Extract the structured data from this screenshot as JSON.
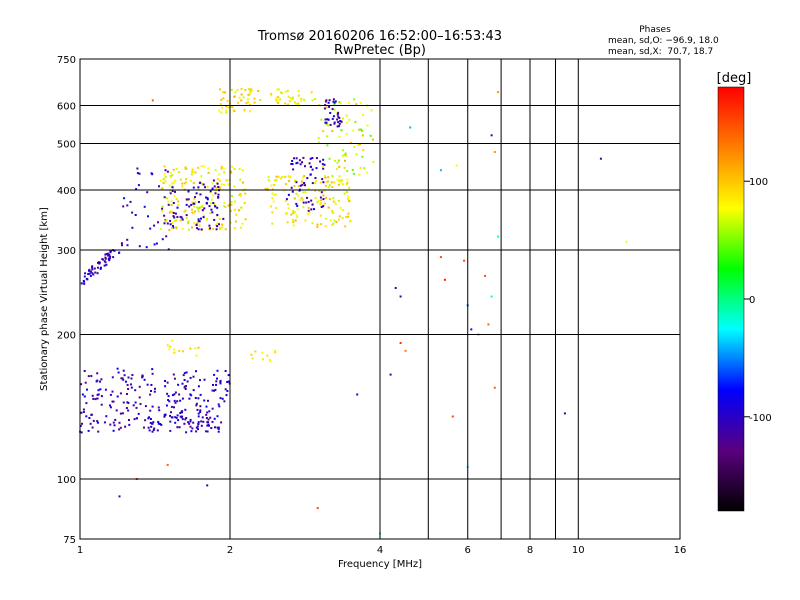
{
  "chart_data": {
    "type": "scatter",
    "title": "Tromsø 20160206 16:52:00–16:53:43",
    "subtitle": "RwPretec (Bp)",
    "xlabel": "Frequency [MHz]",
    "ylabel": "Stationary phase Virtual Height [km]",
    "x_scale": "log",
    "y_scale": "log",
    "xlim": [
      1,
      16
    ],
    "ylim": [
      75,
      750
    ],
    "x_ticks": [
      1,
      2,
      4,
      6,
      8,
      10,
      16
    ],
    "x_tick_labels": [
      "1",
      "2",
      "4",
      "6",
      "8",
      "10",
      "16"
    ],
    "x_grid_extra": [
      5,
      7,
      9
    ],
    "y_ticks": [
      75,
      100,
      200,
      300,
      400,
      500,
      600,
      750
    ],
    "y_tick_labels": [
      "75",
      "100",
      "200",
      "300",
      "400",
      "500",
      "600",
      "750"
    ],
    "grid": true,
    "phases_box": {
      "heading": "Phases",
      "line1": "mean, sd,O: −96.9, 18.0",
      "line2": "mean, sd,X:  70.7, 18.7"
    },
    "colorbar": {
      "label": "[deg]",
      "range": [
        -180,
        180
      ],
      "ticks": [
        100,
        0,
        -100
      ],
      "tick_labels": [
        "100",
        "0",
        "-100"
      ],
      "colormap": [
        "#000000",
        "#5a007f",
        "#0000ff",
        "#00ffff",
        "#00ff00",
        "#ffff00",
        "#ff7f00",
        "#ff0000"
      ]
    },
    "series": [
      {
        "kind": "clusters",
        "clusters": [
          {
            "x": [
              1.0,
              1.22
            ],
            "y": [
              255,
              310
            ],
            "phase": [
              -130,
              -80
            ],
            "n": 60,
            "trend": "rising"
          },
          {
            "x": [
              1.0,
              2.0
            ],
            "y": [
              125,
              170
            ],
            "phase": [
              -130,
              -80
            ],
            "n": 230
          },
          {
            "x": [
              1.35,
              1.85
            ],
            "y": [
              125,
              140
            ],
            "phase": [
              -120,
              -85
            ],
            "n": 60
          },
          {
            "x": [
              1.22,
              1.55
            ],
            "y": [
              300,
              450
            ],
            "phase": [
              -130,
              -80
            ],
            "n": 40
          },
          {
            "x": [
              1.45,
              2.15
            ],
            "y": [
              330,
              450
            ],
            "phase": [
              60,
              110
            ],
            "n": 190
          },
          {
            "x": [
              1.5,
              1.95
            ],
            "y": [
              330,
              420
            ],
            "phase": [
              -130,
              -80
            ],
            "n": 80
          },
          {
            "x": [
              1.9,
              2.3
            ],
            "y": [
              580,
              650
            ],
            "phase": [
              60,
              110
            ],
            "n": 50
          },
          {
            "x": [
              2.35,
              3.5
            ],
            "y": [
              335,
              430
            ],
            "phase": [
              60,
              110
            ],
            "n": 150
          },
          {
            "x": [
              2.6,
              3.1
            ],
            "y": [
              360,
              470
            ],
            "phase": [
              -130,
              -80
            ],
            "n": 60
          },
          {
            "x": [
              3.0,
              3.9
            ],
            "y": [
              430,
              620
            ],
            "phase": [
              40,
              110
            ],
            "n": 70
          },
          {
            "x": [
              3.1,
              3.35
            ],
            "y": [
              540,
              620
            ],
            "phase": [
              -130,
              -90
            ],
            "n": 35
          },
          {
            "x": [
              2.4,
              3.0
            ],
            "y": [
              600,
              650
            ],
            "phase": [
              60,
              100
            ],
            "n": 35
          },
          {
            "x": [
              2.2,
              2.5
            ],
            "y": [
              175,
              185
            ],
            "phase": [
              70,
              100
            ],
            "n": 10
          },
          {
            "x": [
              1.5,
              1.75
            ],
            "y": [
              180,
              195
            ],
            "phase": [
              60,
              100
            ],
            "n": 12
          }
        ]
      },
      {
        "kind": "points",
        "x": [
          4.2,
          4.3,
          4.4,
          4.4,
          5.3,
          5.4,
          5.7,
          5.9,
          6.0,
          6.1,
          6.5,
          6.6,
          6.7,
          6.8,
          6.9,
          6.7,
          6.8,
          6.9,
          11.1,
          9.4,
          12.5,
          6.0,
          4.5,
          5.6,
          4.0,
          4.6,
          5.3,
          3.6,
          6.3,
          1.5,
          1.2,
          1.3,
          1.8,
          1.9,
          3.0,
          1.4
        ],
        "y": [
          165,
          250,
          240,
          192,
          290,
          260,
          450,
          285,
          230,
          205,
          265,
          210,
          240,
          155,
          640,
          520,
          480,
          320,
          465,
          137,
          312,
          106,
          185,
          135,
          77,
          540,
          440,
          150,
          200,
          107,
          92,
          100,
          97,
          128,
          87,
          615
        ],
        "phase": [
          -100,
          -110,
          -110,
          160,
          150,
          170,
          80,
          150,
          -60,
          -100,
          150,
          140,
          -10,
          140,
          120,
          -100,
          120,
          -20,
          -110,
          -120,
          80,
          -30,
          130,
          150,
          -20,
          -40,
          -40,
          -110,
          130,
          140,
          -110,
          160,
          -100,
          -110,
          150,
          140
        ]
      }
    ]
  }
}
